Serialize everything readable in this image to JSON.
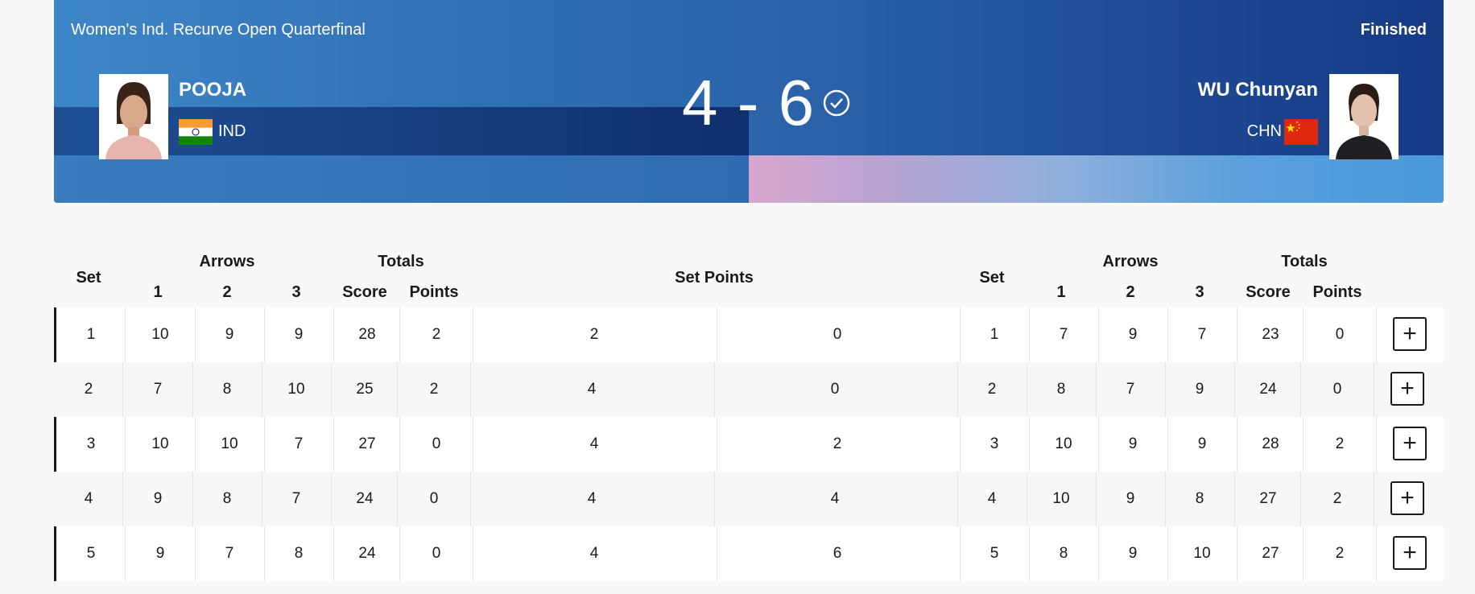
{
  "header": {
    "event_title": "Women's Ind. Recurve Open Quarterfinal",
    "status": "Finished",
    "score": "4 - 6",
    "left": {
      "name": "POOJA",
      "noc": "IND",
      "flag": "india-flag",
      "photo": "athlete-photo"
    },
    "right": {
      "name": "WU Chunyan",
      "noc": "CHN",
      "flag": "china-flag",
      "photo": "athlete-photo"
    },
    "winner_indicator": "check-circle-icon"
  },
  "table": {
    "headers": {
      "set": "Set",
      "arrows": "Arrows",
      "arrow_1": "1",
      "arrow_2": "2",
      "arrow_3": "3",
      "totals": "Totals",
      "score": "Score",
      "points": "Points",
      "set_points": "Set Points"
    },
    "rows": [
      {
        "left": {
          "set": "1",
          "a1": "10",
          "a2": "9",
          "a3": "9",
          "score": "28",
          "points": "2"
        },
        "set_points": [
          "2",
          "0"
        ],
        "right": {
          "set": "1",
          "a1": "7",
          "a2": "9",
          "a3": "7",
          "score": "23",
          "points": "0"
        },
        "expand": "+"
      },
      {
        "left": {
          "set": "2",
          "a1": "7",
          "a2": "8",
          "a3": "10",
          "score": "25",
          "points": "2"
        },
        "set_points": [
          "4",
          "0"
        ],
        "right": {
          "set": "2",
          "a1": "8",
          "a2": "7",
          "a3": "9",
          "score": "24",
          "points": "0"
        },
        "expand": "+"
      },
      {
        "left": {
          "set": "3",
          "a1": "10",
          "a2": "10",
          "a3": "7",
          "score": "27",
          "points": "0"
        },
        "set_points": [
          "4",
          "2"
        ],
        "right": {
          "set": "3",
          "a1": "10",
          "a2": "9",
          "a3": "9",
          "score": "28",
          "points": "2"
        },
        "expand": "+"
      },
      {
        "left": {
          "set": "4",
          "a1": "9",
          "a2": "8",
          "a3": "7",
          "score": "24",
          "points": "0"
        },
        "set_points": [
          "4",
          "4"
        ],
        "right": {
          "set": "4",
          "a1": "10",
          "a2": "9",
          "a3": "8",
          "score": "27",
          "points": "2"
        },
        "expand": "+"
      },
      {
        "left": {
          "set": "5",
          "a1": "9",
          "a2": "7",
          "a3": "8",
          "score": "24",
          "points": "0"
        },
        "set_points": [
          "4",
          "6"
        ],
        "right": {
          "set": "5",
          "a1": "8",
          "a2": "9",
          "a3": "10",
          "score": "27",
          "points": "2"
        },
        "expand": "+"
      }
    ]
  },
  "colors": {
    "banner_start": "#3d86c8",
    "banner_end": "#163a85",
    "text": "#1a1a1a"
  }
}
